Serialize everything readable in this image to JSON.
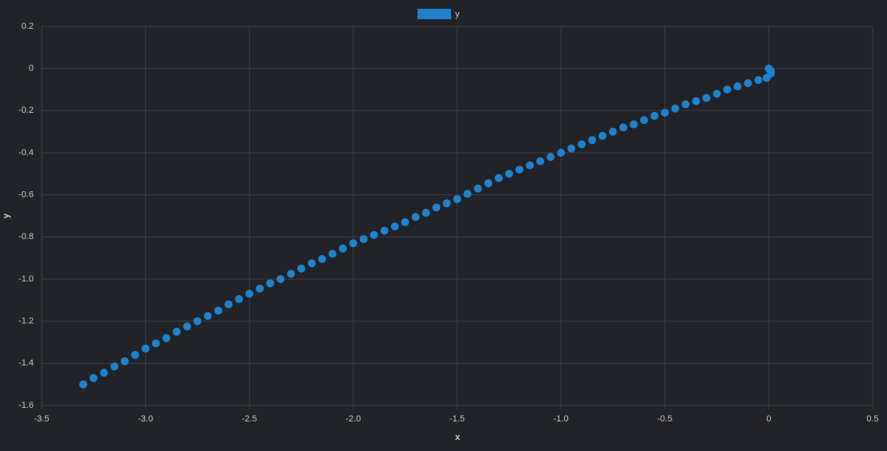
{
  "chart_data": {
    "type": "scatter",
    "x_label": "x",
    "y_label": "y",
    "grid": true,
    "legend": "top",
    "xlim": [
      -3.5,
      0.5
    ],
    "xticks": [
      -3.5,
      {
        "value": -3,
        "label": "-3.0"
      },
      -2.5,
      {
        "value": -2,
        "label": "-2.0"
      },
      -1.5,
      {
        "value": -1,
        "label": "-1.0"
      },
      -0.5,
      0,
      0.5
    ],
    "ylim": [
      -1.6,
      0.2
    ],
    "yticks": [
      0.2,
      0,
      -0.2,
      -0.4,
      -0.6,
      -0.8,
      {
        "value": -1,
        "label": "-1.0"
      },
      -1.2,
      -1.4,
      -1.6
    ],
    "series": [
      {
        "name": "y",
        "color": "#1f82cc",
        "x": [
          0,
          0.01,
          0.01,
          -0.01,
          -0.05,
          -0.1,
          -0.15,
          -0.2,
          -0.25,
          -0.3,
          -0.35,
          -0.4,
          -0.45,
          -0.5,
          -0.55,
          -0.6,
          -0.65,
          -0.7,
          -0.75,
          -0.8,
          -0.85,
          -0.9,
          -0.95,
          -1.0,
          -1.05,
          -1.1,
          -1.15,
          -1.2,
          -1.25,
          -1.3,
          -1.35,
          -1.4,
          -1.45,
          -1.5,
          -1.55,
          -1.6,
          -1.65,
          -1.7,
          -1.75,
          -1.8,
          -1.85,
          -1.9,
          -1.95,
          -2.0,
          -2.05,
          -2.1,
          -2.15,
          -2.2,
          -2.25,
          -2.3,
          -2.35,
          -2.4,
          -2.45,
          -2.5,
          -2.55,
          -2.6,
          -2.65,
          -2.7,
          -2.75,
          -2.8,
          -2.85,
          -2.9,
          -2.95,
          -3.0,
          -3.05,
          -3.1,
          -3.15,
          -3.2,
          -3.25,
          -3.3
        ],
        "values": [
          0,
          -0.01,
          -0.025,
          -0.045,
          -0.055,
          -0.07,
          -0.085,
          -0.1,
          -0.12,
          -0.14,
          -0.155,
          -0.17,
          -0.19,
          -0.21,
          -0.225,
          -0.245,
          -0.265,
          -0.28,
          -0.3,
          -0.32,
          -0.34,
          -0.36,
          -0.38,
          -0.4,
          -0.42,
          -0.44,
          -0.46,
          -0.48,
          -0.5,
          -0.52,
          -0.545,
          -0.57,
          -0.595,
          -0.62,
          -0.64,
          -0.66,
          -0.685,
          -0.705,
          -0.73,
          -0.75,
          -0.77,
          -0.79,
          -0.81,
          -0.83,
          -0.855,
          -0.88,
          -0.905,
          -0.925,
          -0.95,
          -0.975,
          -1.0,
          -1.02,
          -1.045,
          -1.07,
          -1.095,
          -1.12,
          -1.15,
          -1.175,
          -1.2,
          -1.225,
          -1.25,
          -1.28,
          -1.305,
          -1.33,
          -1.36,
          -1.39,
          -1.415,
          -1.445,
          -1.47,
          -1.5
        ]
      }
    ]
  }
}
